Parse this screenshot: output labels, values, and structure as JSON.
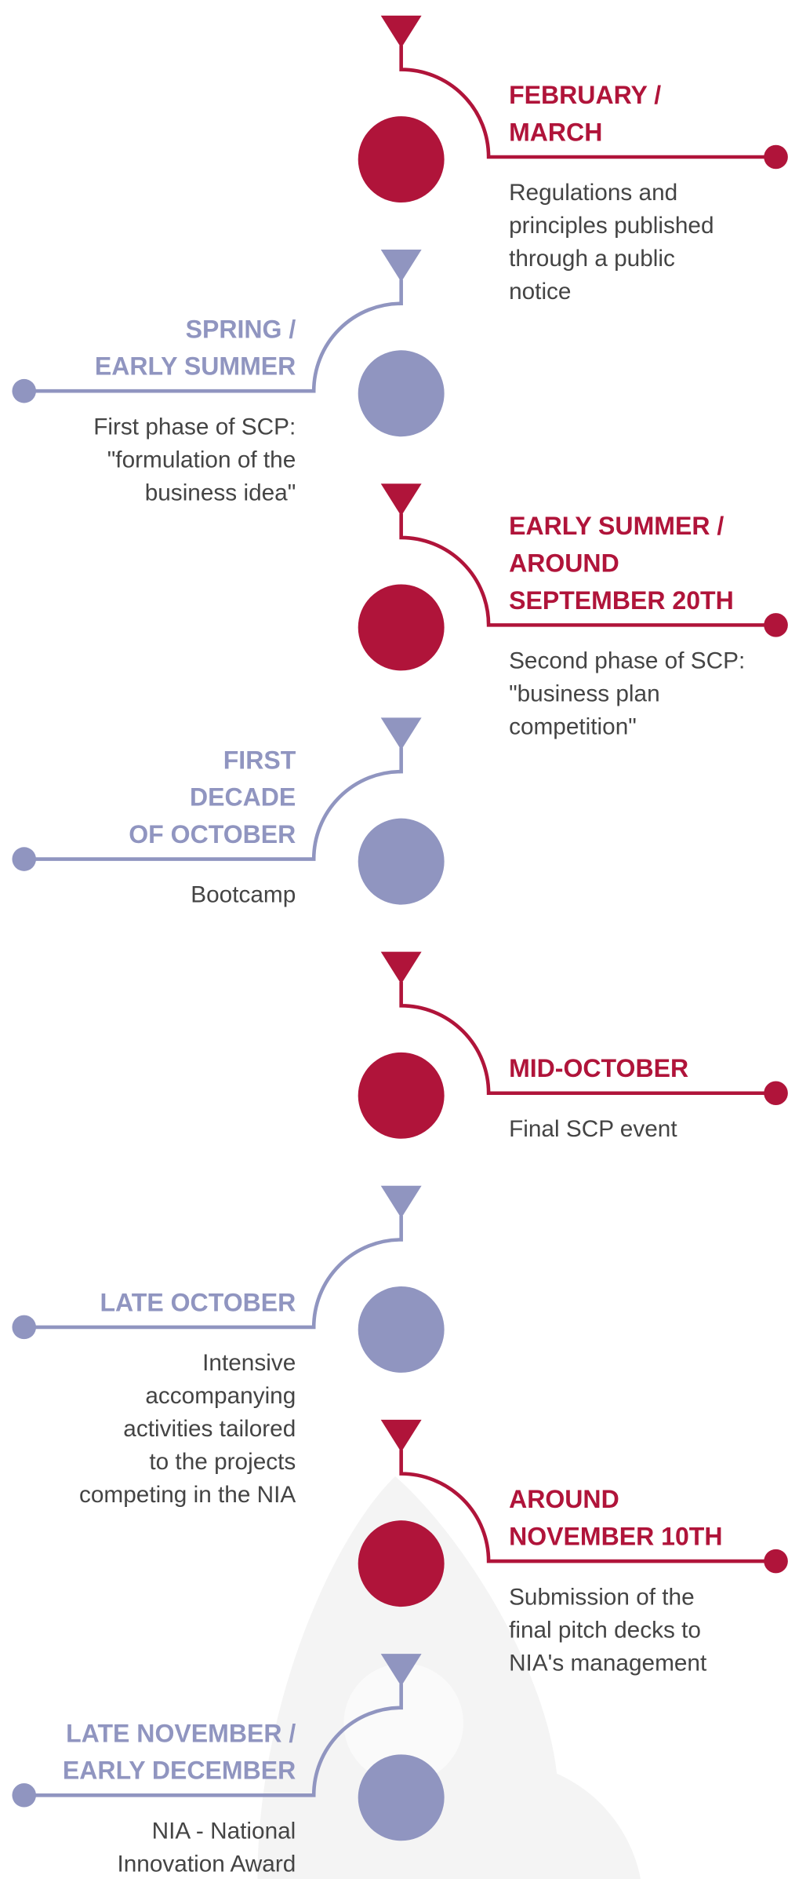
{
  "timeline": [
    {
      "title": [
        "FEBRUARY /",
        "MARCH"
      ],
      "description": [
        "Regulations and",
        "principles published",
        "through a public",
        "notice"
      ]
    },
    {
      "title": [
        "SPRING /",
        "EARLY SUMMER"
      ],
      "description": [
        "First phase of SCP:",
        "\"formulation of the",
        "business idea\""
      ]
    },
    {
      "title": [
        "EARLY SUMMER /",
        "AROUND",
        "SEPTEMBER 20TH"
      ],
      "description": [
        "Second phase of SCP:",
        "\"business plan",
        "competition\""
      ]
    },
    {
      "title": [
        "FIRST",
        "DECADE",
        "OF OCTOBER"
      ],
      "description": [
        "Bootcamp"
      ]
    },
    {
      "title": [
        "MID-OCTOBER"
      ],
      "description": [
        "Final SCP event"
      ]
    },
    {
      "title": [
        "LATE OCTOBER"
      ],
      "description": [
        "Intensive",
        "accompanying",
        "activities tailored",
        "to the projects",
        "competing in the NIA"
      ]
    },
    {
      "title": [
        "AROUND",
        "NOVEMBER 10TH"
      ],
      "description": [
        "Submission of the",
        "final pitch decks to",
        "NIA's management"
      ]
    },
    {
      "title": [
        "LATE NOVEMBER /",
        "EARLY DECEMBER"
      ],
      "description": [
        "NIA - National",
        "Innovation Award"
      ]
    }
  ]
}
